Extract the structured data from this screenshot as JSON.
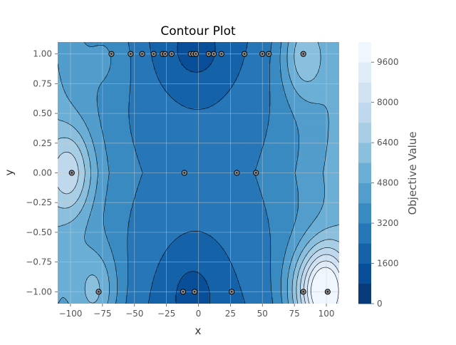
{
  "chart_data": {
    "type": "contour",
    "title": "Contour Plot",
    "xlabel": "x",
    "ylabel": "y",
    "xlim": [
      -110,
      110
    ],
    "ylim": [
      -1.1,
      1.1
    ],
    "x_ticks": [
      -100,
      -75,
      -50,
      -25,
      0,
      25,
      50,
      75,
      100
    ],
    "x_tick_labels": [
      "−100",
      "−75",
      "−50",
      "−25",
      "0",
      "25",
      "50",
      "75",
      "100"
    ],
    "y_ticks": [
      -1.0,
      -0.75,
      -0.5,
      -0.25,
      0.0,
      0.25,
      0.5,
      0.75,
      1.0
    ],
    "y_tick_labels": [
      "−1.00",
      "−0.75",
      "−0.50",
      "−0.25",
      "0.00",
      "0.25",
      "0.50",
      "0.75",
      "1.00"
    ],
    "colorbar": {
      "label": "Objective Value",
      "range": [
        0,
        10400
      ],
      "level_step": 800,
      "ticks": [
        0,
        1600,
        3200,
        4800,
        6400,
        8000,
        9600
      ],
      "tick_labels": [
        "0",
        "1600",
        "3200",
        "4800",
        "6400",
        "8000",
        "9600"
      ],
      "colormap": "Blues_r"
    },
    "grid": true,
    "sample_points": [
      {
        "x": -68,
        "y": 1.0
      },
      {
        "x": -53,
        "y": 1.0
      },
      {
        "x": -44,
        "y": 1.0
      },
      {
        "x": -35,
        "y": 1.0
      },
      {
        "x": -28,
        "y": 1.0
      },
      {
        "x": -26,
        "y": 1.0
      },
      {
        "x": -21,
        "y": 1.0
      },
      {
        "x": -6,
        "y": 1.0
      },
      {
        "x": -4,
        "y": 1.0
      },
      {
        "x": -2,
        "y": 1.0
      },
      {
        "x": 8,
        "y": 1.0
      },
      {
        "x": 12,
        "y": 1.0
      },
      {
        "x": 18,
        "y": 1.0
      },
      {
        "x": 36,
        "y": 1.0
      },
      {
        "x": 50,
        "y": 1.0
      },
      {
        "x": 55,
        "y": 1.0
      },
      {
        "x": 82,
        "y": 1.0
      },
      {
        "x": -99,
        "y": 0.0
      },
      {
        "x": -11,
        "y": 0.0
      },
      {
        "x": 30,
        "y": 0.0
      },
      {
        "x": 45,
        "y": 0.0
      },
      {
        "x": -78,
        "y": -1.0
      },
      {
        "x": -12,
        "y": -1.0
      },
      {
        "x": -3,
        "y": -1.0
      },
      {
        "x": 26,
        "y": -1.0
      },
      {
        "x": 82,
        "y": -1.0
      },
      {
        "x": 101,
        "y": -1.0
      }
    ],
    "field_sources": [
      {
        "x": -100,
        "y": 0.0,
        "strength": 2900
      },
      {
        "x": -80,
        "y": -1.0,
        "strength": 2200
      },
      {
        "x": 82,
        "y": 1.0,
        "strength": 2600
      },
      {
        "x": 100,
        "y": -1.0,
        "strength": 6200
      },
      {
        "x": 82,
        "y": -1.0,
        "strength": 2000
      },
      {
        "x": -68,
        "y": 1.0,
        "strength": 800
      }
    ]
  }
}
